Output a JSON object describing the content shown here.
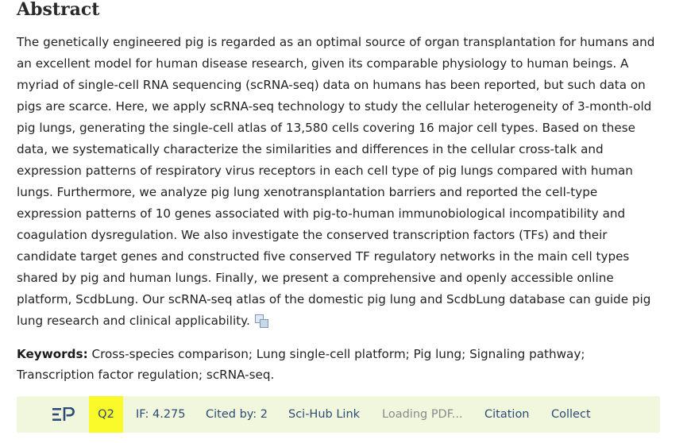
{
  "abstract": {
    "title": "Abstract",
    "body": "The genetically engineered pig is regarded as an optimal source of organ transplantation for humans and an excellent model for human disease research, given its comparable physiology to human beings. A myriad of single-cell RNA sequencing (scRNA-seq) data on humans has been reported, but such data on pigs are scarce. Here, we apply scRNA-seq technology to study the cellular heterogeneity of 3-month-old pig lungs, generating the single-cell atlas of 13,580 cells covering 16 major cell types. Based on these data, we systematically characterize the similarities and differences in the cellular cross-talk and expression patterns of respiratory virus receptors in each cell type of pig lungs compared with human lungs. Furthermore, we analyze pig lung xenotransplantation barriers and reported the cell-type expression patterns of 10 genes associated with pig-to-human immunobiological incompatibility and coagulation dysregulation. We also investigate the conserved transcription factors (TFs) and their candidate target genes and constructed five conserved TF regulatory networks in the main cell types shared by pig and human lungs. Finally, we present a comprehensive and openly accessible online platform, ScdbLung. Our scRNA-seq atlas of the domestic pig lung and ScdbLung database can guide pig lung research and clinical applicability.",
    "translate_icon": "translate-icon"
  },
  "keywords": {
    "label": "Keywords:",
    "text": "Cross-species comparison; Lung single-cell platform; Pig lung; Signaling pathway; Transcription factor regulation; scRNA-seq."
  },
  "toolbar": {
    "logo_icon": "ep-logo-icon",
    "quartile": "Q2",
    "impact_factor": "IF: 4.275",
    "cited_by": "Cited by: 2",
    "scihub": "Sci-Hub Link",
    "loading_pdf": "Loading PDF...",
    "citation": "Citation",
    "collect": "Collect",
    "colors": {
      "background": "#f1f7dc",
      "badge": "#fafa2a",
      "link": "#2b4a78",
      "muted": "#8a8a8a"
    }
  }
}
